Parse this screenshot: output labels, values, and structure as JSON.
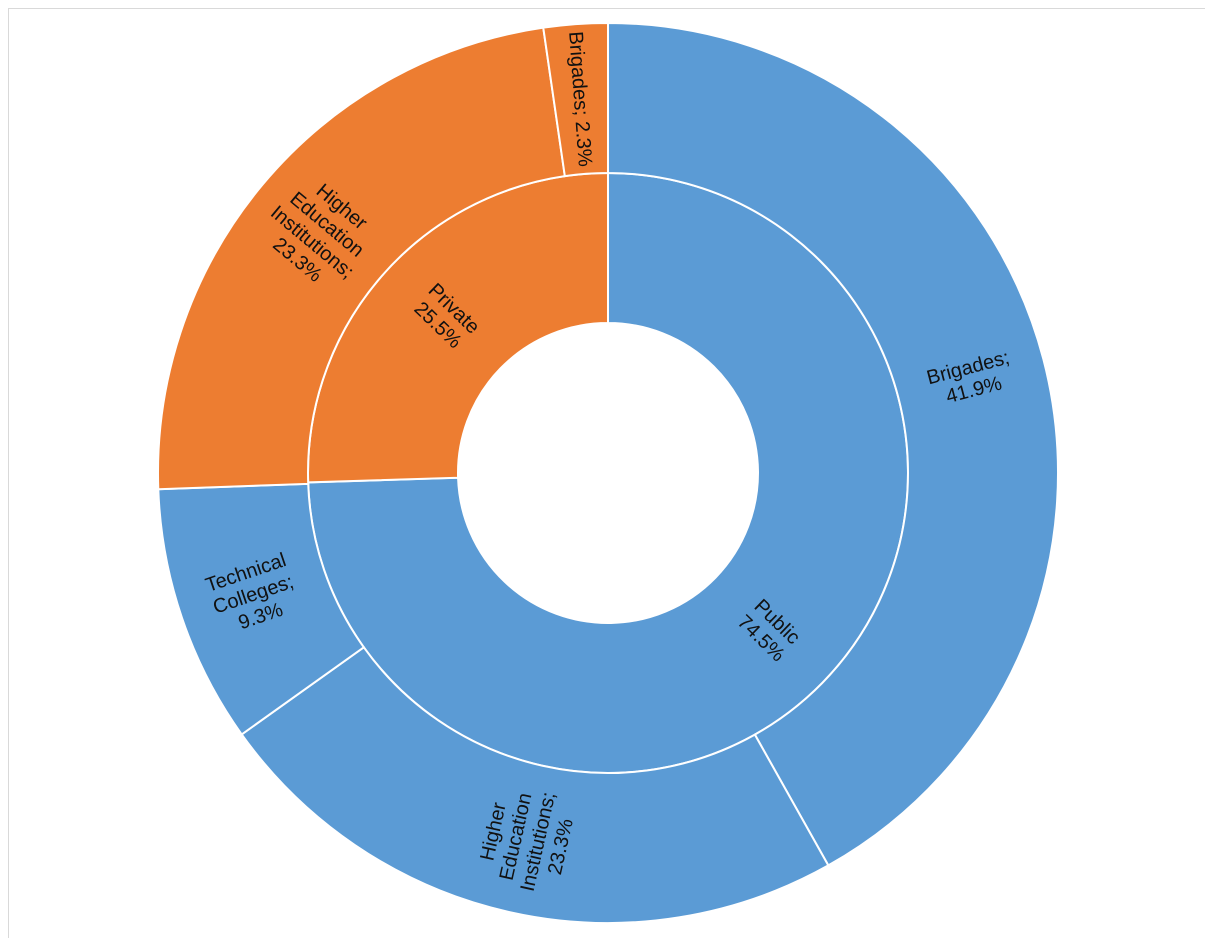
{
  "chart_data": {
    "type": "sunburst",
    "title": "",
    "unit": "%",
    "colors": {
      "Public": "#5b9bd5",
      "Private": "#ed7d31",
      "separator": "#ffffff"
    },
    "inner_ring": [
      {
        "name": "Public",
        "value": 74.5,
        "label_lines": [
          "Public",
          "74.5%"
        ]
      },
      {
        "name": "Private",
        "value": 25.5,
        "label_lines": [
          "Private",
          "25.5%"
        ]
      }
    ],
    "outer_ring": [
      {
        "parent": "Public",
        "name": "Brigades",
        "value": 41.9,
        "label_lines": [
          "Brigades;",
          "41.9%"
        ]
      },
      {
        "parent": "Public",
        "name": "Higher Education Institutions",
        "value": 23.3,
        "label_lines": [
          "Higher",
          "Education",
          "Institutions;",
          "23.3%"
        ]
      },
      {
        "parent": "Public",
        "name": "Technical Colleges",
        "value": 9.3,
        "label_lines": [
          "Technical",
          "Colleges;",
          "9.3%"
        ]
      },
      {
        "parent": "Private",
        "name": "Higher Education Institutions",
        "value": 23.3,
        "label_lines": [
          "Higher",
          "Education",
          "Institutions;",
          "23.3%"
        ]
      },
      {
        "parent": "Private",
        "name": "Brigades",
        "value": 2.3,
        "label_lines": [
          "Brigades; 2.3%"
        ]
      }
    ]
  }
}
